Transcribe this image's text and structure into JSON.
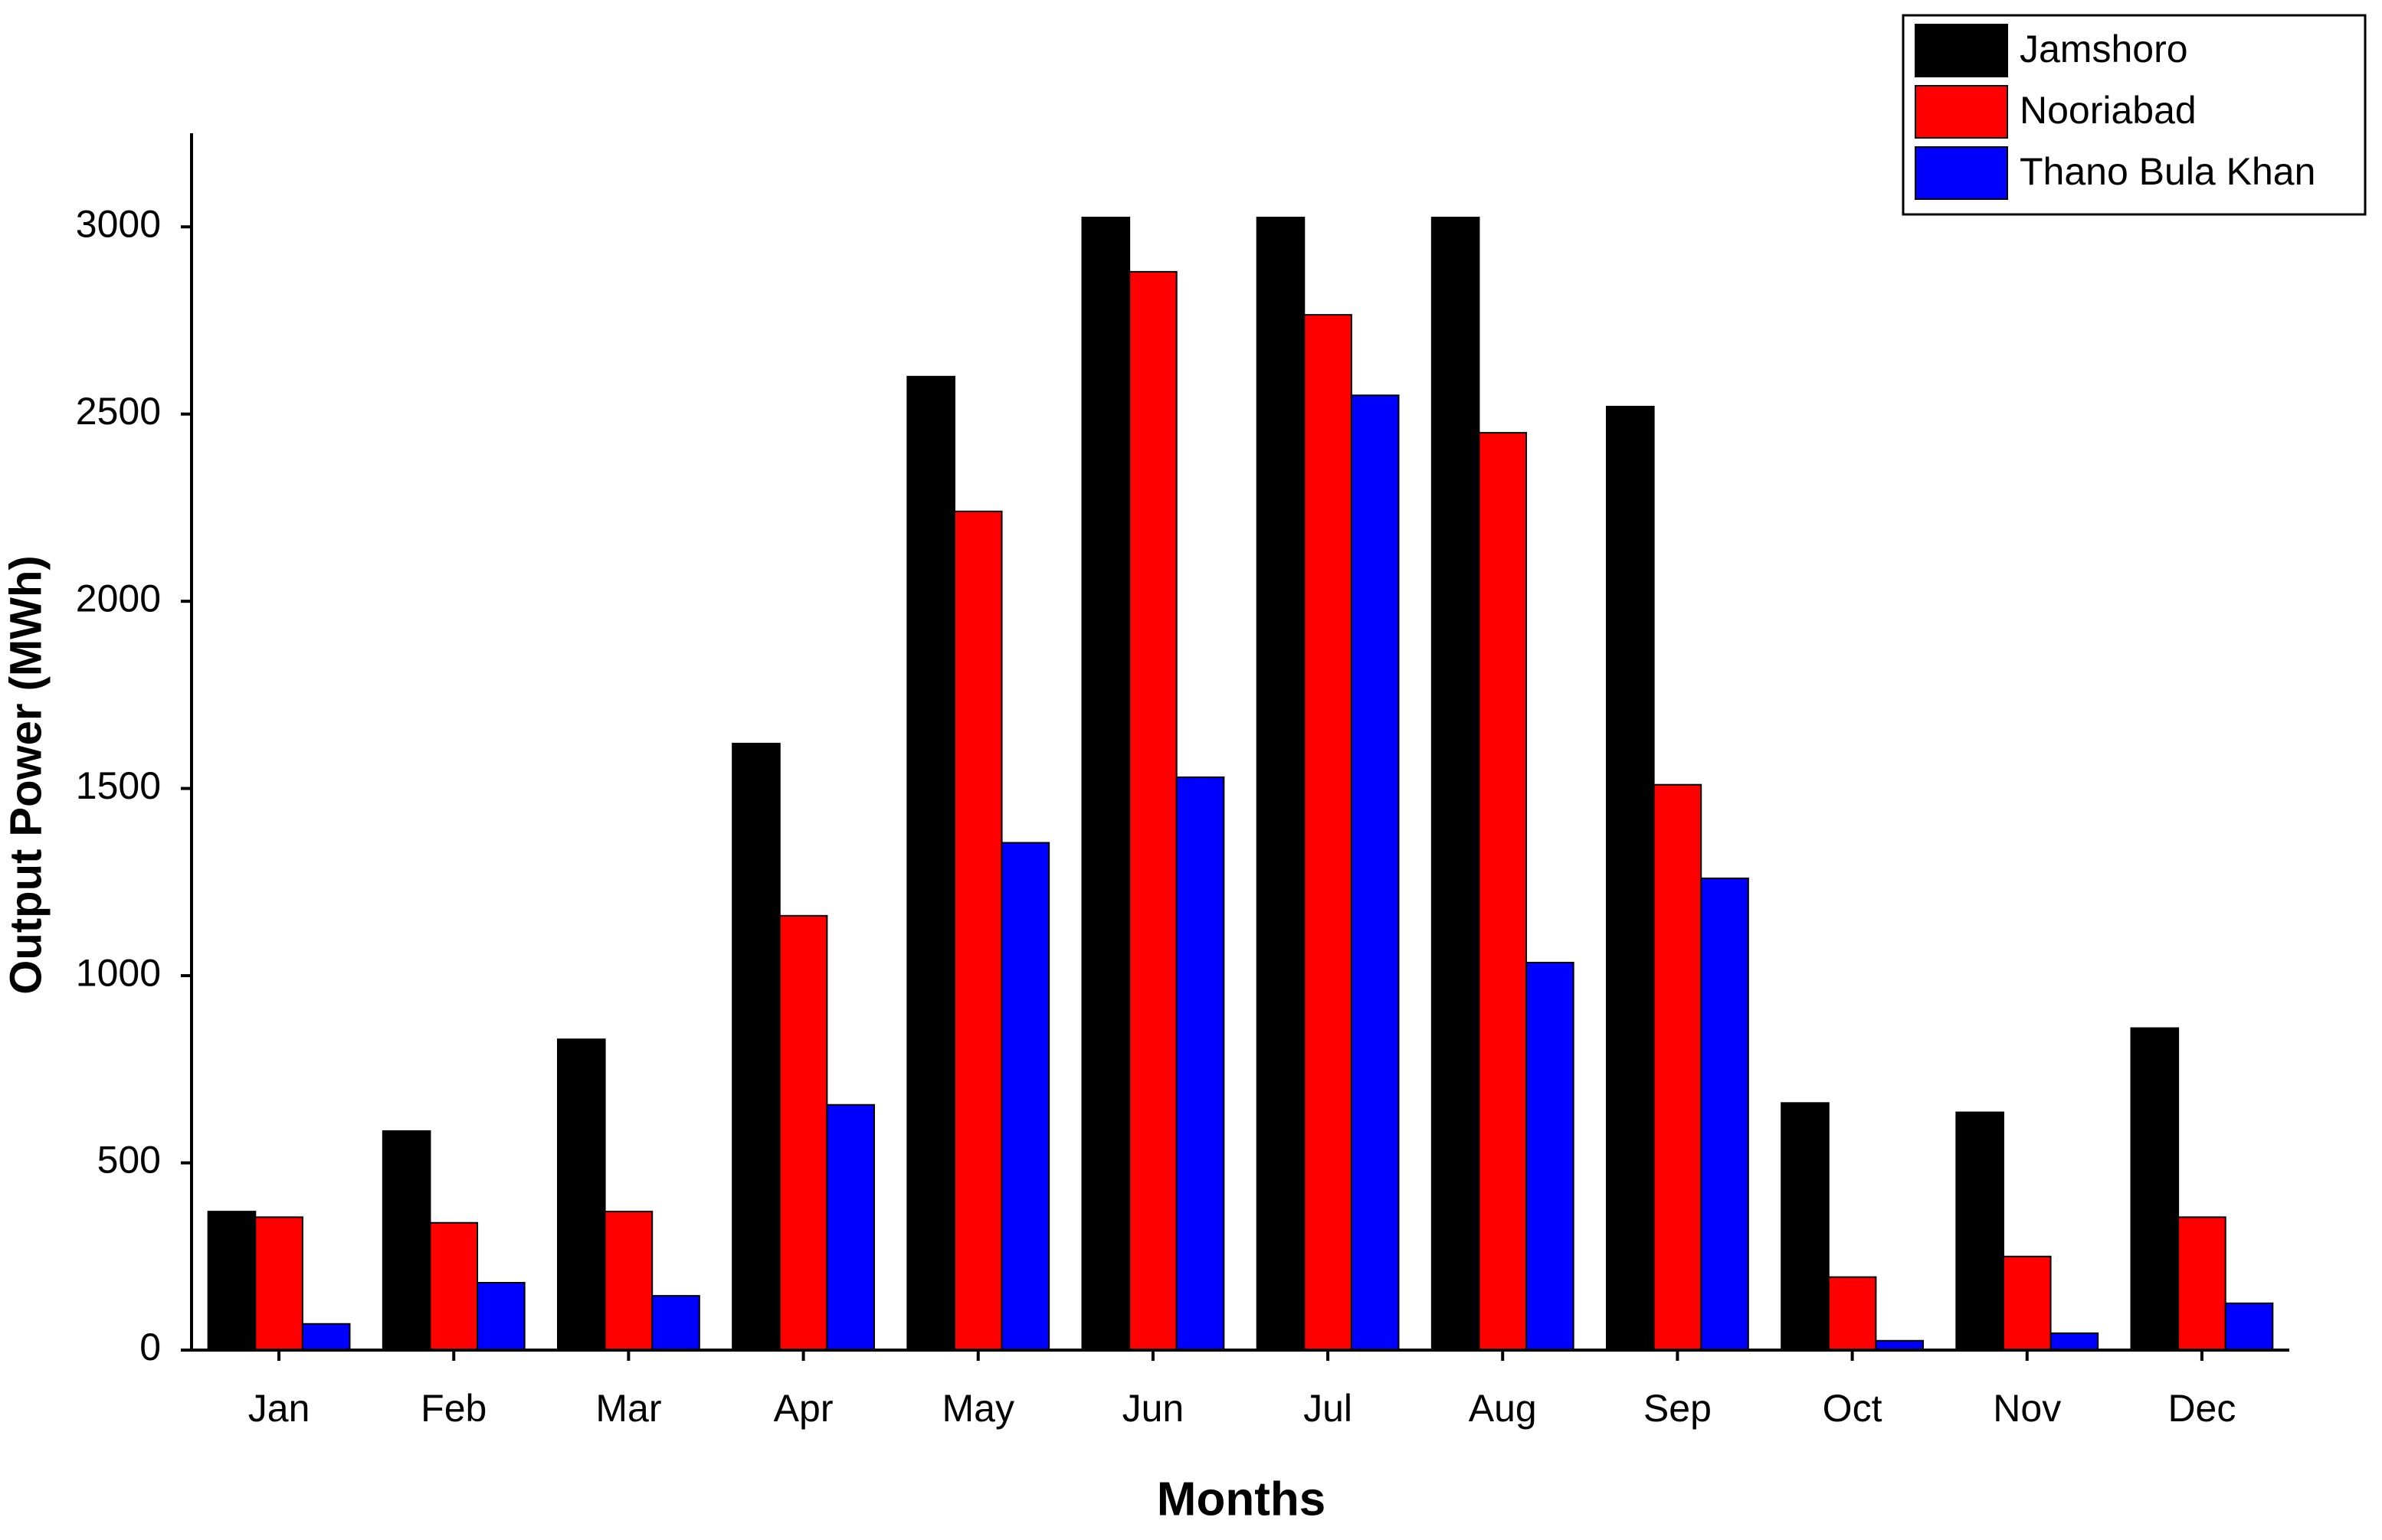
{
  "chart_data": {
    "type": "bar",
    "x_label": "Months",
    "y_label": "Output Power (MWh)",
    "categories": [
      "Jan",
      "Feb",
      "Mar",
      "Apr",
      "May",
      "Jun",
      "Jul",
      "Aug",
      "Sep",
      "Oct",
      "Nov",
      "Dec"
    ],
    "series": [
      {
        "name": "Jamshoro",
        "color": "#000000",
        "values": [
          370,
          585,
          830,
          1620,
          2600,
          3025,
          3025,
          3025,
          2520,
          660,
          635,
          860
        ]
      },
      {
        "name": "Nooriabad",
        "color": "#ff0000",
        "values": [
          355,
          340,
          370,
          1160,
          2240,
          2880,
          2765,
          2450,
          1510,
          195,
          250,
          355
        ]
      },
      {
        "name": "Thano Bula Khan",
        "color": "#0000ff",
        "values": [
          70,
          180,
          145,
          655,
          1355,
          1530,
          2550,
          1035,
          1260,
          25,
          45,
          125
        ]
      }
    ],
    "ylim": [
      0,
      3250
    ],
    "yticks": [
      0,
      500,
      1000,
      1500,
      2000,
      2500,
      3000
    ],
    "legend": "upper right"
  }
}
